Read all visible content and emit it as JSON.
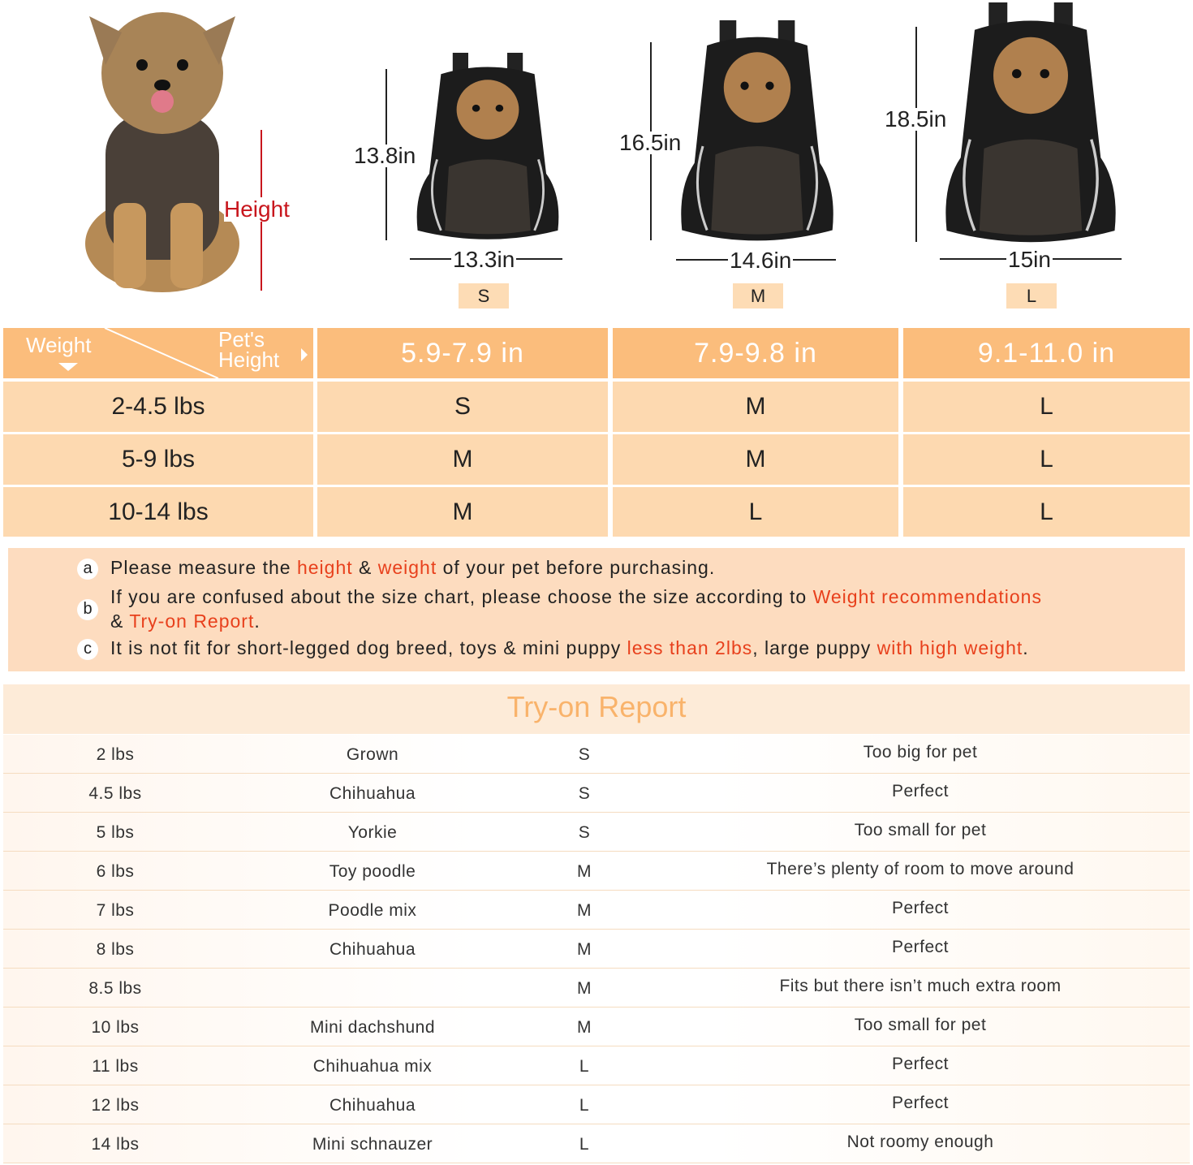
{
  "top": {
    "height_label": "Height",
    "sizes": [
      {
        "size": "S",
        "height": "13.8in",
        "width": "13.3in"
      },
      {
        "size": "M",
        "height": "16.5in",
        "width": "14.6in"
      },
      {
        "size": "L",
        "height": "18.5in",
        "width": "15in"
      }
    ]
  },
  "size_table": {
    "corner_weight": "Weight",
    "corner_height_line1": "Pet's",
    "corner_height_line2": "Height",
    "columns": [
      "5.9-7.9 in",
      "7.9-9.8 in",
      "9.1-11.0 in"
    ],
    "rows": [
      {
        "weight": "2-4.5 lbs",
        "sizes": [
          "S",
          "M",
          "L"
        ]
      },
      {
        "weight": "5-9 lbs",
        "sizes": [
          "M",
          "M",
          "L"
        ]
      },
      {
        "weight": "10-14 lbs",
        "sizes": [
          "M",
          "L",
          "L"
        ]
      }
    ]
  },
  "notes": {
    "a": {
      "marker": "a",
      "t1": "Please measure the ",
      "r1": "height",
      "t2": " & ",
      "r2": "weight",
      "t3": " of your pet before purchasing."
    },
    "b": {
      "marker": "b",
      "t1": "If you are confused about the size chart, please choose the size according to ",
      "r1": "Weight recommendations",
      "t2": "& ",
      "r2": "Try-on Report",
      "t3": "."
    },
    "c": {
      "marker": "c",
      "t1": "It is not fit for short-legged dog breed, toys & mini puppy ",
      "r1": "less than 2lbs",
      "t2": ", large puppy ",
      "r2": "with high weight",
      "t3": "."
    }
  },
  "try_on": {
    "title": "Try-on Report",
    "rows": [
      [
        "2 lbs",
        "Grown",
        "S",
        "Too big for pet"
      ],
      [
        "4.5 lbs",
        "Chihuahua",
        "S",
        "Perfect"
      ],
      [
        "5 lbs",
        "Yorkie",
        "S",
        "Too small for pet"
      ],
      [
        "6 lbs",
        "Toy poodle",
        "M",
        "There’s plenty of room to move around"
      ],
      [
        "7 lbs",
        "Poodle mix",
        "M",
        "Perfect"
      ],
      [
        "8 lbs",
        "Chihuahua",
        "M",
        "Perfect"
      ],
      [
        "8.5 lbs",
        "",
        "M",
        "Fits but there isn’t much extra room"
      ],
      [
        "10 lbs",
        "Mini dachshund",
        "M",
        "Too small for pet"
      ],
      [
        "11 lbs",
        "Chihuahua mix",
        "L",
        "Perfect"
      ],
      [
        "12 lbs",
        "Chihuahua",
        "L",
        "Perfect"
      ],
      [
        "14 lbs",
        "Mini schnauzer",
        "L",
        "Not roomy enough"
      ]
    ]
  },
  "colors": {
    "header": "#fbbd7c",
    "cell": "#fdd9b0",
    "accent_red": "#e8401c",
    "title": "#f9b36b"
  }
}
